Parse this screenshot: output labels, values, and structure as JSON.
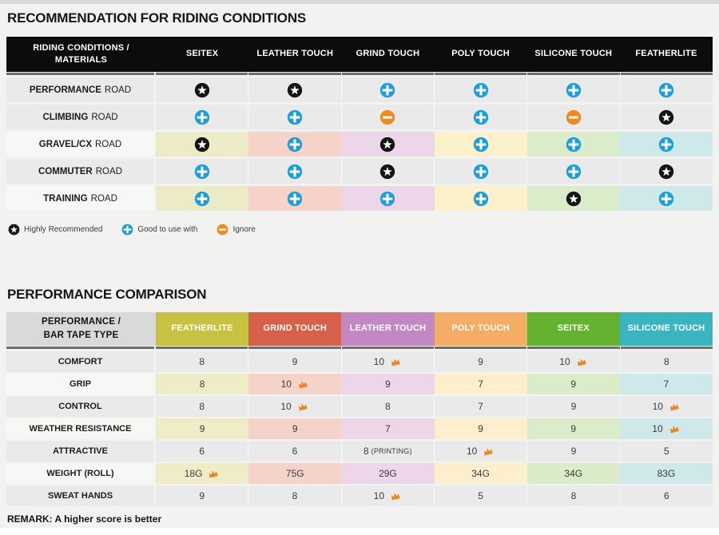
{
  "icon_colors": {
    "star_bg": "#141414",
    "plus_bg": "#1b9edb",
    "minus_bg": "#f08a1f",
    "glyph": "#ffffff",
    "crown": "#ef861d"
  },
  "chart_data": [
    {
      "type": "table",
      "title": "RECOMMENDATION FOR RIDING CONDITIONS",
      "corner_line1": "RIDING CONDITIONS /",
      "corner_line2": "MATERIALS",
      "columns": [
        "SEITEX",
        "LEATHER TOUCH",
        "GRIND TOUCH",
        "POLY TOUCH",
        "SILICONE TOUCH",
        "FEATHERLITE"
      ],
      "column_tints": [
        "#ecebc6",
        "#f6d2c8",
        "#eed6ea",
        "#fdf1cb",
        "#daecca",
        "#cfe8ea"
      ],
      "icon_meanings": {
        "star": "Highly Recommended",
        "plus": "Good to use with",
        "minus": "Ignore"
      },
      "rows": [
        {
          "label_bold": "PERFORMANCE",
          "label_rest": "ROAD",
          "tinted": false,
          "cells": [
            "star",
            "star",
            "plus",
            "plus",
            "plus",
            "plus"
          ]
        },
        {
          "label_bold": "CLIMBING",
          "label_rest": "ROAD",
          "tinted": false,
          "cells": [
            "plus",
            "plus",
            "minus",
            "plus",
            "minus",
            "star"
          ]
        },
        {
          "label_bold": "GRAVEL/CX",
          "label_rest": "ROAD",
          "tinted": true,
          "cells": [
            "star",
            "plus",
            "star",
            "plus",
            "plus",
            "plus"
          ]
        },
        {
          "label_bold": "COMMUTER",
          "label_rest": "ROAD",
          "tinted": false,
          "cells": [
            "plus",
            "plus",
            "star",
            "plus",
            "plus",
            "star"
          ]
        },
        {
          "label_bold": "TRAINING",
          "label_rest": "ROAD",
          "tinted": true,
          "cells": [
            "plus",
            "plus",
            "plus",
            "plus",
            "star",
            "plus"
          ]
        }
      ],
      "legend": [
        {
          "icon": "star",
          "label": "Highly Recommended"
        },
        {
          "icon": "plus",
          "label": "Good to use with"
        },
        {
          "icon": "minus",
          "label": "Ignore"
        }
      ]
    },
    {
      "type": "table",
      "title": "PERFORMANCE COMPARISON",
      "corner_line1": "PERFORMANCE /",
      "corner_line2": "BAR TAPE TYPE",
      "columns": [
        {
          "name": "FEATHERLITE",
          "color": "#c7c242",
          "tint": "#eeedc8"
        },
        {
          "name": "GRIND TOUCH",
          "color": "#d7604b",
          "tint": "#f6d3c9"
        },
        {
          "name": "LEATHER TOUCH",
          "color": "#c288c3",
          "tint": "#eed6ea"
        },
        {
          "name": "POLY TOUCH",
          "color": "#f5ad65",
          "tint": "#fdeecd"
        },
        {
          "name": "SEITEX",
          "color": "#64b22f",
          "tint": "#daecca"
        },
        {
          "name": "SILICONE TOUCH",
          "color": "#3ab5bf",
          "tint": "#cfe8ea"
        }
      ],
      "rows": [
        {
          "metric": "COMFORT",
          "tinted": false,
          "cells": [
            {
              "v": "8"
            },
            {
              "v": "9"
            },
            {
              "v": "10",
              "crown": true
            },
            {
              "v": "9"
            },
            {
              "v": "10",
              "crown": true
            },
            {
              "v": "8"
            }
          ]
        },
        {
          "metric": "GRIP",
          "tinted": true,
          "cells": [
            {
              "v": "8"
            },
            {
              "v": "10",
              "crown": true
            },
            {
              "v": "9"
            },
            {
              "v": "7"
            },
            {
              "v": "9"
            },
            {
              "v": "7"
            }
          ]
        },
        {
          "metric": "CONTROL",
          "tinted": false,
          "cells": [
            {
              "v": "8"
            },
            {
              "v": "10",
              "crown": true
            },
            {
              "v": "8"
            },
            {
              "v": "7"
            },
            {
              "v": "9"
            },
            {
              "v": "10",
              "crown": true
            }
          ]
        },
        {
          "metric": "WEATHER RESISTANCE",
          "tinted": true,
          "cells": [
            {
              "v": "9"
            },
            {
              "v": "9"
            },
            {
              "v": "7"
            },
            {
              "v": "9"
            },
            {
              "v": "9"
            },
            {
              "v": "10",
              "crown": true
            }
          ]
        },
        {
          "metric": "ATTRACTIVE",
          "tinted": false,
          "cells": [
            {
              "v": "6"
            },
            {
              "v": "6"
            },
            {
              "v": "8",
              "note": "(PRINTING)"
            },
            {
              "v": "10",
              "crown": true
            },
            {
              "v": "9"
            },
            {
              "v": "5"
            }
          ]
        },
        {
          "metric": "WEIGHT (ROLL)",
          "tinted": true,
          "cells": [
            {
              "v": "18G",
              "crown": true
            },
            {
              "v": "75G"
            },
            {
              "v": "29G"
            },
            {
              "v": "34G"
            },
            {
              "v": "34G"
            },
            {
              "v": "83G"
            }
          ]
        },
        {
          "metric": "SWEAT HANDS",
          "tinted": false,
          "cells": [
            {
              "v": "9"
            },
            {
              "v": "8"
            },
            {
              "v": "10",
              "crown": true
            },
            {
              "v": "5"
            },
            {
              "v": "8"
            },
            {
              "v": "6"
            }
          ]
        }
      ],
      "remark": "REMARK: A higher score is better"
    }
  ]
}
